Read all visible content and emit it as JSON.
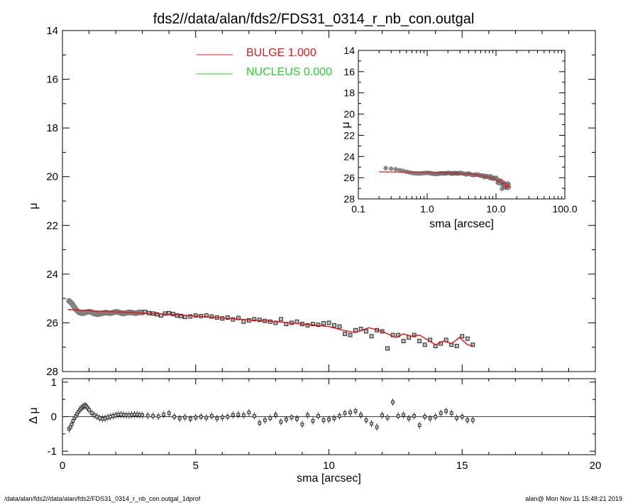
{
  "title": "fds2//data/alan/fds2/FDS31_0314_r_nb_con.outgal",
  "footer_left": "/data/alan/fds2//data/alan/fds2/FDS31_0314_r_nb_con.outgal_1dprof",
  "footer_right": "alan@  Mon Nov 11 15:48:21 2019",
  "colors": {
    "bulge": "#e41a1c",
    "nucleus": "#2ecc2e",
    "data_fill": "#bdbdbd",
    "axis": "#000000"
  },
  "chart_data": [
    {
      "id": "main",
      "type": "scatter",
      "xlabel": "",
      "ylabel": "μ",
      "xlim": [
        0,
        20
      ],
      "ylim": [
        28,
        14
      ],
      "x_ticks": [
        0,
        5,
        10,
        15,
        20
      ],
      "y_ticks": [
        14,
        16,
        18,
        20,
        22,
        24,
        26,
        28
      ],
      "x_tick_labels": [
        "",
        "",
        "",
        "",
        ""
      ],
      "y_tick_labels": [
        "14",
        "16",
        "18",
        "20",
        "22",
        "24",
        "26",
        "28"
      ],
      "legend": {
        "placement": "top-left",
        "entries": [
          {
            "label": "BULGE  1.000",
            "color": "#e41a1c"
          },
          {
            "label": "NUCLEUS  0.000",
            "color": "#2ecc2e"
          }
        ]
      },
      "data_inner": {
        "x": [
          0.25,
          0.3,
          0.35,
          0.4,
          0.45,
          0.5,
          0.55,
          0.6,
          0.65,
          0.7,
          0.75,
          0.8,
          0.85,
          0.9,
          0.95,
          1.0,
          1.05,
          1.1,
          1.15,
          1.2,
          1.25,
          1.3,
          1.35,
          1.4,
          1.45,
          1.5,
          1.55,
          1.6,
          1.65,
          1.7,
          1.75,
          1.8,
          1.85,
          1.9,
          1.95,
          2.0,
          2.05,
          2.1,
          2.15,
          2.2,
          2.25,
          2.3,
          2.35,
          2.4,
          2.45,
          2.5,
          2.55,
          2.6,
          2.65,
          2.7,
          2.75,
          2.8,
          2.85,
          2.9,
          2.95,
          3.0
        ],
        "y": [
          25.1,
          25.15,
          25.2,
          25.28,
          25.36,
          25.44,
          25.5,
          25.55,
          25.58,
          25.6,
          25.6,
          25.6,
          25.58,
          25.56,
          25.55,
          25.54,
          25.55,
          25.57,
          25.6,
          25.62,
          25.63,
          25.64,
          25.64,
          25.63,
          25.62,
          25.6,
          25.59,
          25.58,
          25.58,
          25.59,
          25.6,
          25.6,
          25.59,
          25.58,
          25.56,
          25.55,
          25.55,
          25.56,
          25.58,
          25.6,
          25.61,
          25.61,
          25.6,
          25.59,
          25.58,
          25.57,
          25.57,
          25.58,
          25.59,
          25.6,
          25.6,
          25.59,
          25.58,
          25.57,
          25.57,
          25.58
        ]
      },
      "data_outer": {
        "x": [
          3.1,
          3.25,
          3.4,
          3.55,
          3.7,
          3.85,
          4.0,
          4.15,
          4.3,
          4.45,
          4.6,
          4.8,
          5.0,
          5.2,
          5.4,
          5.6,
          5.8,
          6.0,
          6.2,
          6.4,
          6.6,
          6.8,
          7.0,
          7.2,
          7.4,
          7.6,
          7.8,
          8.0,
          8.2,
          8.4,
          8.6,
          8.8,
          9.0,
          9.2,
          9.4,
          9.6,
          9.8,
          10.0,
          10.2,
          10.4,
          10.6,
          10.8,
          11.0,
          11.2,
          11.4,
          11.6,
          11.8,
          12.0,
          12.2,
          12.4,
          12.6,
          12.8,
          13.0,
          13.2,
          13.4,
          13.6,
          13.8,
          14.0,
          14.2,
          14.4,
          14.6,
          14.8,
          15.0,
          15.2,
          15.4
        ],
        "y": [
          25.55,
          25.6,
          25.62,
          25.65,
          25.7,
          25.62,
          25.6,
          25.64,
          25.7,
          25.72,
          25.76,
          25.74,
          25.7,
          25.72,
          25.7,
          25.74,
          25.78,
          25.82,
          25.78,
          25.86,
          25.8,
          25.95,
          25.9,
          25.85,
          25.88,
          25.92,
          25.95,
          26.0,
          25.85,
          26.05,
          26.0,
          25.95,
          26.05,
          26.1,
          26.05,
          26.08,
          26.02,
          26.0,
          26.1,
          26.15,
          26.45,
          26.5,
          26.3,
          26.25,
          26.35,
          26.55,
          26.3,
          26.35,
          27.05,
          26.5,
          26.5,
          26.75,
          26.6,
          26.5,
          26.75,
          26.9,
          26.7,
          26.95,
          26.85,
          26.7,
          26.9,
          26.95,
          26.55,
          26.65,
          26.9
        ]
      },
      "bulge_model": {
        "x": [
          0.2,
          1.0,
          2.0,
          3.0,
          4.0,
          5.0,
          6.0,
          7.0,
          8.0,
          9.0,
          10.0,
          10.5,
          11.0,
          11.5,
          12.0,
          12.5,
          12.8,
          13.1,
          13.4,
          13.7,
          14.0,
          14.3,
          14.6,
          14.9,
          15.2,
          15.4
        ],
        "y": [
          25.45,
          25.5,
          25.55,
          25.6,
          25.65,
          25.72,
          25.8,
          25.88,
          25.95,
          26.05,
          26.15,
          26.3,
          26.4,
          26.2,
          26.35,
          26.6,
          26.45,
          26.55,
          26.5,
          26.7,
          26.9,
          26.75,
          26.85,
          26.6,
          26.9,
          26.95
        ]
      }
    },
    {
      "id": "inset",
      "type": "scatter",
      "xlabel": "sma [arcsec]",
      "ylabel": "μ",
      "xscale": "log",
      "xlim": [
        0.1,
        100
      ],
      "ylim": [
        28,
        14
      ],
      "x_ticks": [
        0.1,
        1,
        10,
        100
      ],
      "x_tick_labels": [
        "0.1",
        "1.0",
        "10.0",
        "100.0"
      ],
      "y_ticks": [
        14,
        16,
        18,
        20,
        22,
        24,
        26,
        28
      ],
      "y_tick_labels": [
        "14",
        "16",
        "18",
        "20",
        "22",
        "24",
        "26",
        "28"
      ]
    },
    {
      "id": "residual",
      "type": "scatter",
      "xlabel": "sma [arcsec]",
      "ylabel": "Δ μ",
      "xlim": [
        0,
        20
      ],
      "ylim": [
        -1.1,
        1.1
      ],
      "x_ticks": [
        0,
        5,
        10,
        15,
        20
      ],
      "x_tick_labels": [
        "0",
        "5",
        "10",
        "15",
        "20"
      ],
      "y_ticks": [
        -1,
        0,
        1
      ],
      "y_tick_labels": [
        "-1",
        "0",
        "1"
      ],
      "zero_line": true,
      "data": {
        "x": [
          0.25,
          0.3,
          0.35,
          0.4,
          0.45,
          0.5,
          0.55,
          0.6,
          0.65,
          0.7,
          0.75,
          0.8,
          0.85,
          0.9,
          0.95,
          1.0,
          1.1,
          1.2,
          1.3,
          1.4,
          1.5,
          1.6,
          1.7,
          1.8,
          1.9,
          2.0,
          2.1,
          2.2,
          2.3,
          2.4,
          2.5,
          2.6,
          2.7,
          2.8,
          2.9,
          3.0,
          3.2,
          3.4,
          3.6,
          3.8,
          4.0,
          4.2,
          4.4,
          4.6,
          4.8,
          5.0,
          5.2,
          5.4,
          5.6,
          5.8,
          6.0,
          6.2,
          6.4,
          6.6,
          6.8,
          7.0,
          7.2,
          7.4,
          7.6,
          7.8,
          8.0,
          8.2,
          8.4,
          8.6,
          8.8,
          9.0,
          9.2,
          9.4,
          9.6,
          9.8,
          10.0,
          10.2,
          10.4,
          10.6,
          10.8,
          11.0,
          11.2,
          11.4,
          11.6,
          11.8,
          12.0,
          12.2,
          12.4,
          12.6,
          12.8,
          13.0,
          13.2,
          13.4,
          13.6,
          13.8,
          14.0,
          14.2,
          14.4,
          14.6,
          14.8,
          15.0,
          15.2,
          15.4
        ],
        "y": [
          -0.35,
          -0.3,
          -0.22,
          -0.12,
          -0.04,
          0.02,
          0.08,
          0.14,
          0.2,
          0.24,
          0.28,
          0.3,
          0.32,
          0.3,
          0.25,
          0.2,
          0.1,
          0.04,
          0.0,
          -0.04,
          -0.06,
          -0.05,
          -0.02,
          0.0,
          0.02,
          0.04,
          0.06,
          0.06,
          0.05,
          0.04,
          0.04,
          0.05,
          0.06,
          0.06,
          0.05,
          0.04,
          0.03,
          0.02,
          0.01,
          0.06,
          0.1,
          0.0,
          -0.05,
          -0.02,
          -0.06,
          -0.02,
          0.0,
          -0.03,
          0.02,
          -0.05,
          -0.02,
          0.0,
          0.05,
          0.06,
          0.04,
          0.12,
          0.02,
          -0.18,
          -0.1,
          -0.04,
          0.05,
          -0.15,
          -0.08,
          -0.02,
          -0.06,
          -0.22,
          0.04,
          -0.12,
          0.02,
          -0.1,
          -0.08,
          -0.05,
          0.02,
          0.1,
          0.12,
          0.16,
          0.05,
          -0.1,
          -0.2,
          -0.3,
          0.04,
          -0.03,
          0.42,
          0.02,
          0.05,
          -0.05,
          0.02,
          -0.25,
          0.0,
          -0.05,
          0.0,
          0.1,
          0.16,
          0.1,
          -0.04,
          0.0,
          -0.1,
          -0.1
        ]
      }
    }
  ]
}
